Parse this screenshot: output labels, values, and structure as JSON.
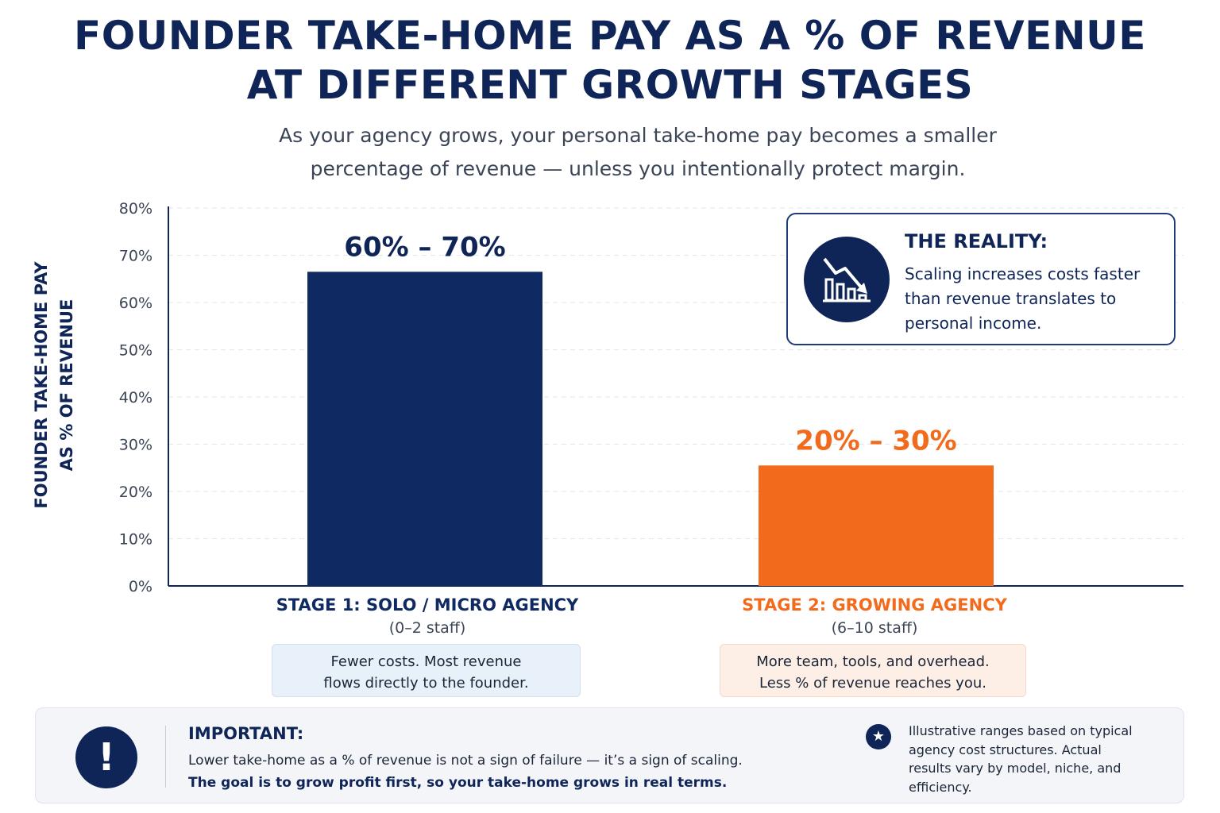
{
  "header": {
    "title_line1": "FOUNDER TAKE-HOME PAY AS A % OF REVENUE",
    "title_line2": "AT DIFFERENT GROWTH STAGES",
    "subtitle_line1": "As your agency grows, your personal take-home pay becomes a smaller",
    "subtitle_line2": "percentage of revenue — unless you intentionally protect margin."
  },
  "chart_data": {
    "type": "bar",
    "title": "FOUNDER TAKE-HOME PAY AS A % OF REVENUE AT DIFFERENT GROWTH STAGES",
    "ylabel_line1": "FOUNDER TAKE-HOME PAY",
    "ylabel_line2": "AS % OF REVENUE",
    "ylim": [
      0,
      80
    ],
    "yticks": [
      "0%",
      "10%",
      "20%",
      "30%",
      "40%",
      "50%",
      "60%",
      "70%",
      "80%"
    ],
    "grid": true,
    "categories": [
      "STAGE 1: SOLO / MICRO AGENCY",
      "STAGE 2: GROWING AGENCY"
    ],
    "values": [
      66.5,
      25.5
    ],
    "data_labels": [
      "60% – 70%",
      "20% – 30%"
    ],
    "bar_colors": [
      "#0f2a62",
      "#f26a1b"
    ]
  },
  "stages": [
    {
      "label": "STAGE 1: SOLO / MICRO AGENCY",
      "staff": "(0–2 staff)",
      "note_line1": "Fewer costs. Most revenue",
      "note_line2": "flows directly to the founder.",
      "color": "#0f2a62"
    },
    {
      "label": "STAGE 2: GROWING AGENCY",
      "staff": "(6–10 staff)",
      "note_line1": "More team, tools, and overhead.",
      "note_line2": "Less % of revenue reaches you.",
      "color": "#f26a1b"
    }
  ],
  "callout": {
    "icon": "declining-chart-icon",
    "title": "THE REALITY:",
    "text": "Scaling increases costs faster than revenue translates to personal income."
  },
  "important": {
    "icon": "exclamation-icon",
    "title": "IMPORTANT:",
    "line1": "Lower take-home as a % of revenue is not a sign of failure — it’s a sign of scaling.",
    "line2": "The goal is to grow profit first, so your take-home grows in real terms.",
    "note_icon": "star-icon",
    "note": "Illustrative ranges based on typical agency cost structures. Actual results vary by model, niche, and efficiency."
  }
}
